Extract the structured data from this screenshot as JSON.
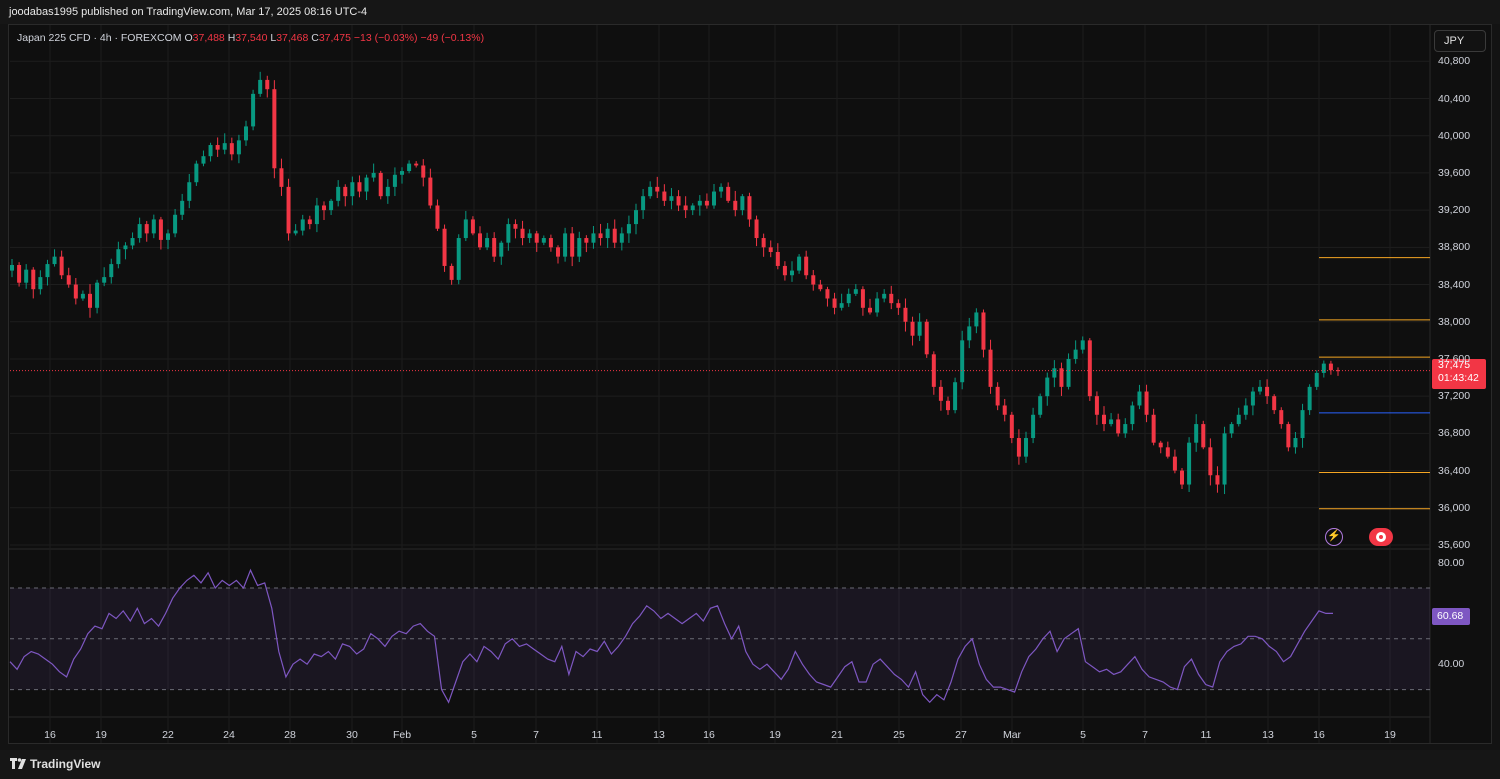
{
  "header": {
    "published": "joodabas1995 published on TradingView.com, Mar 17, 2025 08:16 UTC-4"
  },
  "legend": {
    "symbol": "Japan 225 CFD · 4h · FOREXCOM",
    "o_label": "O",
    "o": "37,488",
    "h_label": "H",
    "h": "37,540",
    "l_label": "L",
    "l": "37,468",
    "c_label": "C",
    "c": "37,475",
    "change": "−13 (−0.03%)",
    "change2": "−49 (−0.13%)"
  },
  "currency_button": "JPY",
  "price_tag": {
    "price": "37,475",
    "countdown": "01:43:42"
  },
  "rsi_tag": "60.68",
  "footer": {
    "brand": "TradingView"
  },
  "colors": {
    "up": "#089981",
    "down": "#f23645",
    "rsi": "#7e57c2",
    "level_orange": "#f5a623",
    "level_blue": "#2962ff",
    "background": "#0f0f0f"
  },
  "icons": [
    "lightning-icon",
    "record-icon",
    "tradingview-logo-icon"
  ],
  "chart_data": [
    {
      "type": "candlestick",
      "timeframe": "4h",
      "y_ticks": [
        "40,800",
        "40,400",
        "40,000",
        "39,600",
        "39,200",
        "38,800",
        "38,400",
        "38,000",
        "37,600",
        "37,200",
        "36,800",
        "36,400",
        "36,000",
        "35,600"
      ],
      "x_ticks": [
        "16",
        "19",
        "22",
        "24",
        "28",
        "30",
        "Feb",
        "5",
        "7",
        "11",
        "13",
        "16",
        "19",
        "21",
        "25",
        "27",
        "Mar",
        "5",
        "7",
        "11",
        "13",
        "16",
        "19"
      ],
      "ylim": [
        35600,
        40900
      ],
      "last_price": 37475,
      "horizontal_levels": [
        {
          "value": 38690,
          "color": "#f5a623"
        },
        {
          "value": 38020,
          "color": "#f5a623"
        },
        {
          "value": 37620,
          "color": "#f5a623"
        },
        {
          "value": 37020,
          "color": "#2962ff"
        },
        {
          "value": 36380,
          "color": "#f5a623"
        },
        {
          "value": 35990,
          "color": "#f5a623"
        }
      ],
      "closes": [
        38610,
        38420,
        38560,
        38350,
        38480,
        38620,
        38700,
        38500,
        38400,
        38250,
        38300,
        38150,
        38420,
        38480,
        38620,
        38780,
        38820,
        38900,
        39050,
        38950,
        39100,
        38880,
        38950,
        39150,
        39300,
        39500,
        39700,
        39780,
        39900,
        39850,
        39920,
        39800,
        39950,
        40100,
        40450,
        40600,
        40500,
        39650,
        39450,
        38950,
        38980,
        39100,
        39050,
        39250,
        39200,
        39300,
        39450,
        39350,
        39500,
        39400,
        39550,
        39600,
        39350,
        39450,
        39580,
        39620,
        39700,
        39680,
        39550,
        39250,
        39000,
        38600,
        38450,
        38900,
        39100,
        38950,
        38800,
        38900,
        38700,
        38850,
        39050,
        39000,
        38900,
        38950,
        38850,
        38900,
        38800,
        38700,
        38950,
        38700,
        38900,
        38850,
        38950,
        38900,
        39000,
        38850,
        38950,
        39050,
        39200,
        39350,
        39450,
        39400,
        39300,
        39350,
        39250,
        39200,
        39250,
        39300,
        39250,
        39400,
        39450,
        39300,
        39200,
        39350,
        39100,
        38900,
        38800,
        38750,
        38600,
        38500,
        38550,
        38700,
        38500,
        38400,
        38350,
        38250,
        38150,
        38200,
        38300,
        38350,
        38150,
        38100,
        38250,
        38300,
        38200,
        38150,
        38000,
        37850,
        38000,
        37650,
        37300,
        37150,
        37050,
        37350,
        37800,
        37950,
        38100,
        37700,
        37300,
        37100,
        37000,
        36750,
        36550,
        36750,
        37000,
        37200,
        37400,
        37500,
        37300,
        37600,
        37700,
        37800,
        37200,
        37000,
        36900,
        36950,
        36800,
        36900,
        37100,
        37250,
        37000,
        36700,
        36650,
        36550,
        36400,
        36250,
        36700,
        36900,
        36650,
        36350,
        36250,
        36800,
        36900,
        37000,
        37100,
        37250,
        37300,
        37200,
        37050,
        36900,
        36650,
        36750,
        37050,
        37300,
        37450,
        37550,
        37480,
        37475
      ]
    },
    {
      "type": "line",
      "name": "RSI",
      "y_ticks": [
        "80.00",
        "40.00"
      ],
      "bands": [
        70,
        50,
        30
      ],
      "ylim": [
        20,
        83
      ],
      "last_value": 60.68,
      "values": [
        41,
        38,
        43,
        45,
        44,
        42,
        40,
        37,
        35,
        42,
        46,
        52,
        55,
        54,
        60,
        58,
        61,
        57,
        62,
        56,
        58,
        55,
        60,
        66,
        70,
        73,
        75,
        72,
        76,
        70,
        73,
        71,
        73,
        70,
        77,
        71,
        72,
        62,
        45,
        35,
        40,
        42,
        40,
        44,
        43,
        45,
        42,
        48,
        47,
        44,
        46,
        52,
        50,
        47,
        51,
        53,
        52,
        55,
        56,
        53,
        51,
        30,
        25,
        33,
        41,
        44,
        41,
        47,
        45,
        42,
        48,
        50,
        47,
        48,
        46,
        44,
        42,
        41,
        47,
        36,
        45,
        43,
        46,
        45,
        49,
        44,
        47,
        51,
        56,
        59,
        63,
        61,
        58,
        60,
        58,
        56,
        58,
        60,
        57,
        62,
        63,
        56,
        50,
        55,
        45,
        40,
        38,
        40,
        37,
        34,
        38,
        45,
        40,
        36,
        33,
        32,
        31,
        35,
        39,
        41,
        33,
        33,
        40,
        42,
        39,
        36,
        34,
        31,
        37,
        28,
        25,
        28,
        26,
        33,
        42,
        47,
        50,
        40,
        34,
        31,
        31,
        30,
        29,
        37,
        43,
        46,
        50,
        53,
        45,
        50,
        52,
        54,
        41,
        39,
        37,
        38,
        36,
        37,
        40,
        43,
        38,
        35,
        34,
        33,
        31,
        30,
        39,
        42,
        36,
        32,
        31,
        41,
        45,
        47,
        48,
        51,
        51,
        50,
        47,
        45,
        41,
        43,
        48,
        53,
        57,
        61,
        60,
        60
      ]
    }
  ]
}
